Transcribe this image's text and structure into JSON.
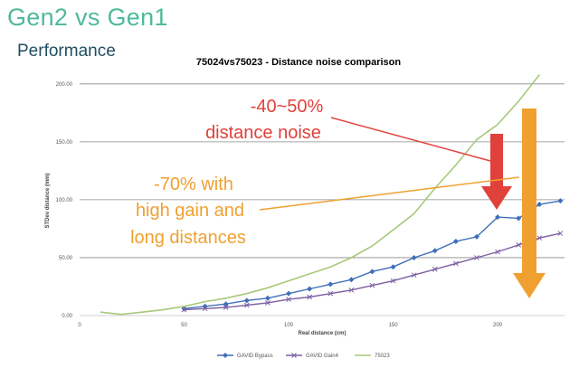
{
  "slide": {
    "title": "Gen2 vs Gen1",
    "subtitle": "Performance"
  },
  "annotations": {
    "red_line1": "-40~50%",
    "red_line2": "distance noise",
    "orange_line1": "-70% with",
    "orange_line2": "high gain and",
    "orange_line3": "long distances"
  },
  "colors": {
    "blue_series": "#3f6fba",
    "purple_series": "#7d5fa3",
    "green_series": "#a7c97a",
    "red_annotation": "#e0413a",
    "orange_annotation": "#f0a030"
  },
  "chart_data": {
    "type": "line",
    "title": "75024vs75023 - Distance noise comparison",
    "xlabel": "Real distance (cm)",
    "ylabel": "STDev distance (mm)",
    "xlim": [
      0,
      232
    ],
    "ylim": [
      0,
      210
    ],
    "x_ticks": [
      {
        "value": 0,
        "label": "0"
      },
      {
        "value": 50,
        "label": "50"
      },
      {
        "value": 100,
        "label": "100"
      },
      {
        "value": 150,
        "label": "150"
      },
      {
        "value": 200,
        "label": "200"
      }
    ],
    "y_ticks": [
      {
        "value": 0,
        "label": "0.00"
      },
      {
        "value": 50,
        "label": "50.00"
      },
      {
        "value": 100,
        "label": "100.00"
      },
      {
        "value": 150,
        "label": "150.00"
      },
      {
        "value": 200,
        "label": "200.00"
      }
    ],
    "grid": {
      "horizontal": true,
      "vertical": false
    },
    "legend_position": "bottom",
    "series": [
      {
        "name": "GAVID Bypass",
        "color": "#3f6fba",
        "marker": "diamond",
        "x": [
          50,
          60,
          70,
          80,
          90,
          100,
          110,
          120,
          130,
          140,
          150,
          160,
          170,
          180,
          190,
          200,
          210,
          220,
          230
        ],
        "y": [
          6,
          8,
          10,
          13,
          15,
          19,
          23,
          27,
          31,
          38,
          42,
          50,
          56,
          64,
          68,
          85,
          84,
          96,
          99
        ]
      },
      {
        "name": "GAVID Gain4",
        "color": "#7d5fa3",
        "marker": "cross",
        "x": [
          50,
          60,
          70,
          80,
          90,
          100,
          110,
          120,
          130,
          140,
          150,
          160,
          170,
          180,
          190,
          200,
          210,
          220,
          230
        ],
        "y": [
          5,
          6,
          7,
          9,
          11,
          14,
          16,
          19,
          22,
          26,
          30,
          35,
          40,
          45,
          50,
          55,
          61,
          67,
          71
        ]
      },
      {
        "name": "75023",
        "color": "#a7c97a",
        "marker": "none",
        "x": [
          10,
          20,
          30,
          40,
          50,
          60,
          70,
          80,
          90,
          100,
          110,
          120,
          130,
          140,
          150,
          160,
          170,
          180,
          190,
          200,
          210,
          220
        ],
        "y": [
          3,
          1,
          3,
          5,
          8,
          12,
          15,
          19,
          24,
          30,
          36,
          42,
          50,
          60,
          74,
          88,
          110,
          130,
          152,
          165,
          185,
          208
        ]
      }
    ]
  }
}
